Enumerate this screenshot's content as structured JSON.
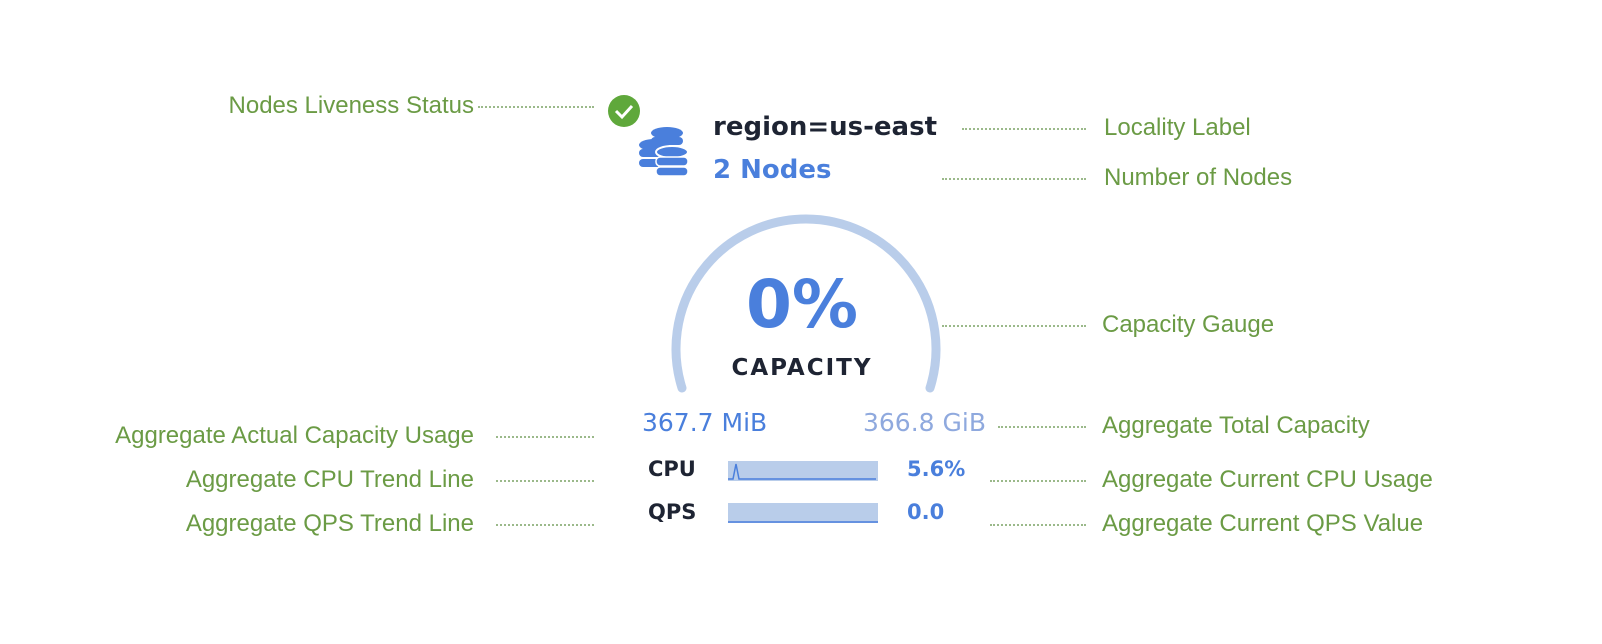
{
  "colors": {
    "annotation": "#6b9b45",
    "accent": "#4a7fdc",
    "gauge_track": "#b9cdea",
    "text_dark": "#1e2433",
    "ok": "#5fa83b"
  },
  "widget": {
    "status_icon": "check-circle-icon",
    "node_icon": "database-stack-icon",
    "locality": "region=us-east",
    "node_count": "2 Nodes",
    "capacity_percent": "0%",
    "capacity_fraction": 0,
    "capacity_label": "CAPACITY",
    "used": "367.7 MiB",
    "total": "366.8 GiB",
    "cpu_label": "CPU",
    "cpu_value": "5.6%",
    "qps_label": "QPS",
    "qps_value": "0.0"
  },
  "annotations": {
    "liveness": "Nodes Liveness Status",
    "locality": "Locality Label",
    "nodes": "Number of Nodes",
    "gauge": "Capacity Gauge",
    "usage": "Aggregate Actual Capacity Usage",
    "total": "Aggregate Total Capacity",
    "cpu_trend": "Aggregate CPU Trend Line",
    "cpu_current": "Aggregate Current CPU Usage",
    "qps_trend": "Aggregate QPS Trend Line",
    "qps_current": "Aggregate Current QPS Value"
  }
}
